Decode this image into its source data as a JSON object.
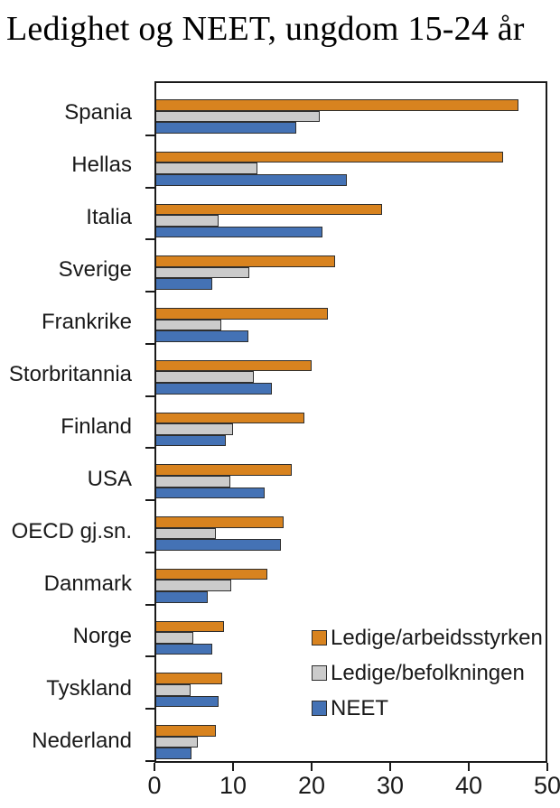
{
  "title": "Ledighet og NEET, ungdom 15-24 år",
  "colors": {
    "orange": "#D8831F",
    "gray": "#CBCBCB",
    "blue": "#4472B5",
    "bar_border": "#2E2E2E",
    "axis": "#1A1A1A"
  },
  "chart_data": {
    "type": "bar",
    "orientation": "horizontal",
    "title": "Ledighet og NEET, ungdom 15-24 år",
    "xlabel": "",
    "ylabel": "",
    "xlim": [
      0,
      50
    ],
    "x_tick_labels": [
      "0",
      "10",
      "20",
      "30",
      "40",
      "50"
    ],
    "x_tick_values": [
      0,
      10,
      20,
      30,
      40,
      50
    ],
    "grid": false,
    "legend_position": "inside-bottom-right",
    "categories": [
      "Spania",
      "Hellas",
      "Italia",
      "Sverige",
      "Frankrike",
      "Storbritannia",
      "Finland",
      "USA",
      "OECD gj.sn.",
      "Danmark",
      "Norge",
      "Tyskland",
      "Nederland"
    ],
    "series": [
      {
        "name": "Ledige/arbeidsstyrken",
        "color": "#D8831F",
        "values": [
          46.5,
          44.5,
          29.0,
          23.0,
          22.0,
          20.0,
          19.0,
          17.4,
          16.3,
          14.3,
          8.7,
          8.5,
          7.7
        ]
      },
      {
        "name": "Ledige/befolkningen",
        "color": "#CBCBCB",
        "values": [
          21.0,
          13.0,
          8.0,
          12.0,
          8.4,
          12.5,
          9.9,
          9.5,
          7.6,
          9.6,
          4.7,
          4.4,
          5.3
        ]
      },
      {
        "name": "NEET",
        "color": "#4472B5",
        "values": [
          18.0,
          24.5,
          21.3,
          7.2,
          11.8,
          14.9,
          8.9,
          13.9,
          16.0,
          6.6,
          7.2,
          8.0,
          4.5
        ]
      }
    ]
  }
}
